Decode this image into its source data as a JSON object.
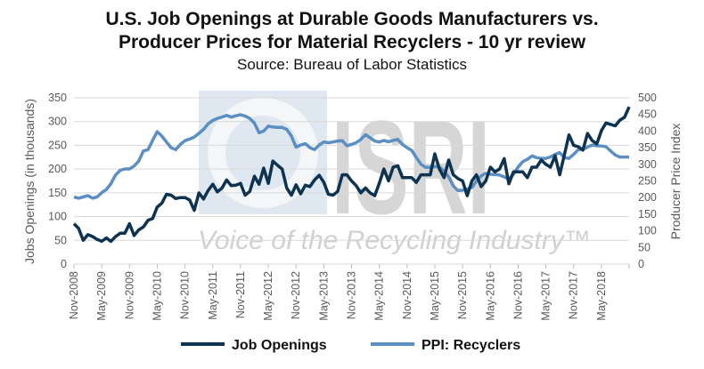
{
  "chart_data": {
    "type": "line",
    "title_line1": "U.S. Job Openings at Durable Goods Manufacturers vs.",
    "title_line2": "Producer Prices for Material Recyclers - 10 yr review",
    "subtitle": "Source: Bureau of Labor Statistics",
    "ylabel": "Jobs Openings (in thousands)",
    "y2label": "Producer Price Index",
    "ylim": [
      0,
      350
    ],
    "y2lim": [
      0,
      500
    ],
    "yticks": [
      "0",
      "50",
      "100",
      "150",
      "200",
      "250",
      "300",
      "350"
    ],
    "y2ticks": [
      "0",
      "50",
      "100",
      "150",
      "200",
      "250",
      "300",
      "350",
      "400",
      "450",
      "500"
    ],
    "grid": true,
    "legend_position": "bottom",
    "x_start": "Nov-2008",
    "x_end": "Nov-2018",
    "xtick_labels": [
      "Nov-2008",
      "May-2009",
      "Nov-2009",
      "May-2010",
      "Nov-2010",
      "May-2011",
      "Nov-2011",
      "May-2012",
      "Nov-2012",
      "May-2013",
      "Nov-2013",
      "May-2014",
      "Nov-2014",
      "May-2015",
      "Nov-2015",
      "May-2016",
      "Nov-2016",
      "May-2017",
      "Nov-2017",
      "May-2018"
    ],
    "series": [
      {
        "name": "Job Openings",
        "axis": "left",
        "color": "#0d3350",
        "values": [
          85,
          75,
          50,
          62,
          58,
          52,
          48,
          55,
          48,
          58,
          65,
          65,
          85,
          60,
          72,
          78,
          92,
          96,
          120,
          128,
          147,
          145,
          138,
          140,
          140,
          135,
          113,
          150,
          137,
          155,
          168,
          152,
          160,
          177,
          165,
          166,
          170,
          145,
          153,
          185,
          168,
          202,
          170,
          217,
          208,
          200,
          160,
          145,
          167,
          148,
          166,
          163,
          177,
          187,
          172,
          147,
          145,
          153,
          188,
          188,
          175,
          165,
          150,
          160,
          150,
          144,
          170,
          200,
          175,
          204,
          207,
          182,
          182,
          182,
          172,
          188,
          188,
          188,
          232,
          200,
          182,
          219,
          188,
          180,
          175,
          144,
          175,
          188,
          163,
          175,
          204,
          194,
          200,
          222,
          169,
          194,
          194,
          194,
          182,
          204,
          204,
          219,
          210,
          204,
          228,
          188,
          230,
          272,
          250,
          247,
          240,
          275,
          260,
          253,
          281,
          297,
          294,
          291,
          303,
          309,
          331
        ]
      },
      {
        "name": "PPI: Recyclers",
        "axis": "right",
        "color": "#5b8fc4",
        "values": [
          202,
          198,
          202,
          206,
          198,
          202,
          215,
          224,
          242,
          268,
          282,
          286,
          286,
          295,
          310,
          340,
          344,
          372,
          398,
          385,
          367,
          350,
          344,
          360,
          371,
          376,
          382,
          393,
          405,
          422,
          432,
          438,
          442,
          447,
          442,
          446,
          449,
          445,
          438,
          424,
          395,
          400,
          415,
          412,
          411,
          411,
          405,
          385,
          352,
          358,
          362,
          350,
          344,
          358,
          367,
          365,
          367,
          370,
          371,
          356,
          360,
          365,
          375,
          389,
          380,
          370,
          367,
          372,
          368,
          372,
          375,
          360,
          350,
          342,
          320,
          300,
          291,
          291,
          293,
          292,
          280,
          262,
          235,
          221,
          222,
          226,
          230,
          250,
          265,
          273,
          270,
          269,
          268,
          262,
          256,
          270,
          292,
          308,
          315,
          325,
          320,
          318,
          318,
          322,
          330,
          335,
          320,
          318,
          330,
          344,
          345,
          352,
          358,
          356,
          355,
          353,
          340,
          328,
          322,
          322,
          322
        ]
      }
    ]
  },
  "watermark": {
    "logo_text": "ISRI",
    "tagline": "Voice of the Recycling Industry™"
  }
}
